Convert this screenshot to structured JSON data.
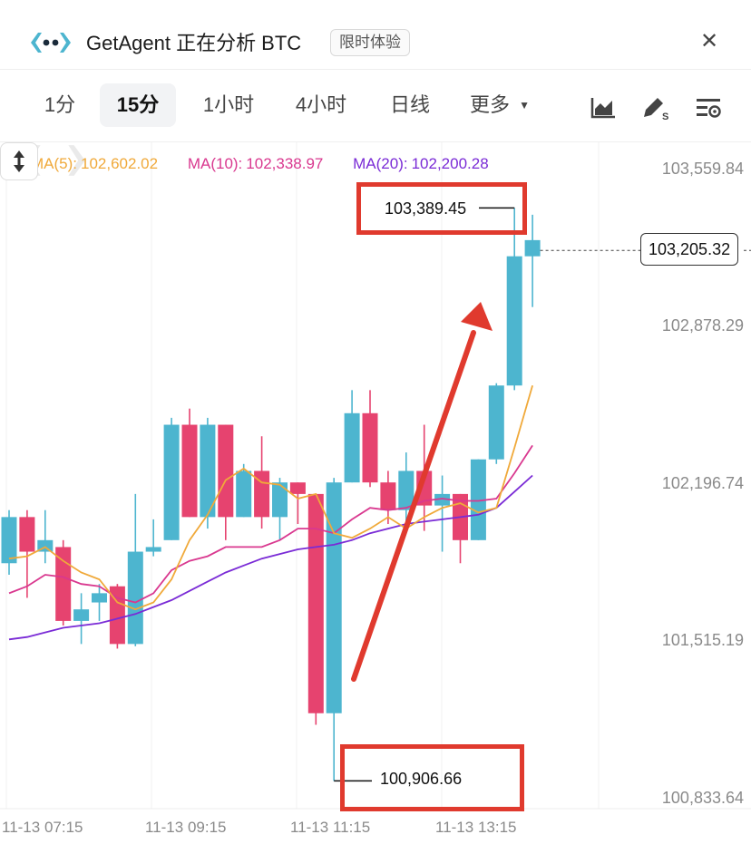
{
  "header": {
    "logo_icon": "getagent-logo-icon",
    "title": "GetAgent 正在分析 BTC",
    "badge": "限时体验",
    "close_icon": "close-icon"
  },
  "tabs": [
    {
      "label": "1分",
      "active": false
    },
    {
      "label": "15分",
      "active": true
    },
    {
      "label": "1小时",
      "active": false
    },
    {
      "label": "4小时",
      "active": false
    },
    {
      "label": "日线",
      "active": false
    },
    {
      "label": "更多",
      "active": false
    }
  ],
  "toolbar": {
    "icons": [
      "chart-type-icon",
      "draw-tool-icon",
      "indicator-settings-icon"
    ]
  },
  "colors": {
    "up": "#4db5cf",
    "down": "#e6436f",
    "ma5": "#f0a93a",
    "ma10": "#d9388f",
    "ma20": "#7a2bd6",
    "highlight": "#e03a2e"
  },
  "chart_data": {
    "type": "candlestick",
    "ma": {
      "ma5": {
        "label": "MA(5):",
        "value": "102,602.02"
      },
      "ma10": {
        "label": "MA(10):",
        "value": "102,338.97"
      },
      "ma20": {
        "label": "MA(20):",
        "value": "102,200.28"
      }
    },
    "y_ticks": [
      "103,559.84",
      "102,878.29",
      "102,196.74",
      "101,515.19",
      "100,833.64"
    ],
    "y_tick_values": [
      103559.84,
      102878.29,
      102196.74,
      101515.19,
      100833.64
    ],
    "ylim": [
      100833.64,
      103559.84
    ],
    "x_ticks": [
      "11-13 07:15",
      "11-13 09:15",
      "11-13 11:15",
      "11-13 13:15"
    ],
    "current_price": "103,205.32",
    "current_price_value": 103205.32,
    "high_label": "103,389.45",
    "high_value": 103389.45,
    "low_label": "100,906.66",
    "low_value": 100906.66,
    "candles": [
      {
        "o": 101850,
        "c": 102050,
        "h": 102080,
        "l": 101800
      },
      {
        "o": 102050,
        "c": 101900,
        "h": 102080,
        "l": 101700
      },
      {
        "o": 101900,
        "c": 101950,
        "h": 102080,
        "l": 101850
      },
      {
        "o": 101920,
        "c": 101600,
        "h": 101950,
        "l": 101580
      },
      {
        "o": 101600,
        "c": 101650,
        "h": 101720,
        "l": 101500
      },
      {
        "o": 101680,
        "c": 101720,
        "h": 101760,
        "l": 101600
      },
      {
        "o": 101750,
        "c": 101500,
        "h": 101760,
        "l": 101480
      },
      {
        "o": 101500,
        "c": 101900,
        "h": 102150,
        "l": 101490
      },
      {
        "o": 101900,
        "c": 101920,
        "h": 102040,
        "l": 101880
      },
      {
        "o": 101950,
        "c": 102450,
        "h": 102480,
        "l": 101950
      },
      {
        "o": 102450,
        "c": 102050,
        "h": 102520,
        "l": 102050
      },
      {
        "o": 102050,
        "c": 102450,
        "h": 102480,
        "l": 102000
      },
      {
        "o": 102450,
        "c": 102050,
        "h": 102450,
        "l": 101950
      },
      {
        "o": 102050,
        "c": 102250,
        "h": 102280,
        "l": 102050
      },
      {
        "o": 102250,
        "c": 102050,
        "h": 102400,
        "l": 102000
      },
      {
        "o": 102050,
        "c": 102200,
        "h": 102220,
        "l": 101950
      },
      {
        "o": 102200,
        "c": 102150,
        "h": 102200,
        "l": 102020
      },
      {
        "o": 102150,
        "c": 101200,
        "h": 102150,
        "l": 101150
      },
      {
        "o": 101200,
        "c": 102200,
        "h": 102220,
        "l": 100906.66
      },
      {
        "o": 102200,
        "c": 102500,
        "h": 102600,
        "l": 102200
      },
      {
        "o": 102500,
        "c": 102200,
        "h": 102600,
        "l": 102180
      },
      {
        "o": 102200,
        "c": 102080,
        "h": 102250,
        "l": 102020
      },
      {
        "o": 102080,
        "c": 102250,
        "h": 102330,
        "l": 102000
      },
      {
        "o": 102250,
        "c": 102100,
        "h": 102450,
        "l": 101990
      },
      {
        "o": 102100,
        "c": 102150,
        "h": 102230,
        "l": 101900
      },
      {
        "o": 102150,
        "c": 101950,
        "h": 102150,
        "l": 101850
      },
      {
        "o": 101950,
        "c": 102300,
        "h": 102300,
        "l": 101950
      },
      {
        "o": 102300,
        "c": 102620,
        "h": 102630,
        "l": 102280
      },
      {
        "o": 102620,
        "c": 103180,
        "h": 103389.45,
        "l": 102600
      },
      {
        "o": 103180,
        "c": 103250,
        "h": 103360,
        "l": 102960
      }
    ],
    "ma5_series": [
      101870,
      101880,
      101920,
      101860,
      101810,
      101780,
      101680,
      101650,
      101680,
      101780,
      101950,
      102060,
      102210,
      102260,
      102200,
      102190,
      102130,
      102150,
      101980,
      101960,
      102000,
      102050,
      102000,
      102050,
      102090,
      102110,
      102070,
      102090,
      102350,
      102620
    ],
    "ma10_series": [
      101720,
      101750,
      101800,
      101790,
      101760,
      101750,
      101700,
      101680,
      101720,
      101820,
      101860,
      101880,
      101920,
      101920,
      101920,
      101950,
      102000,
      102000,
      101980,
      102040,
      102090,
      102080,
      102090,
      102120,
      102130,
      102120,
      102120,
      102130,
      102240,
      102360
    ],
    "ma20_series": [
      101520,
      101530,
      101550,
      101570,
      101580,
      101590,
      101610,
      101630,
      101660,
      101690,
      101730,
      101770,
      101810,
      101840,
      101870,
      101890,
      101910,
      101920,
      101930,
      101950,
      101980,
      102000,
      102020,
      102030,
      102040,
      102050,
      102060,
      102090,
      102160,
      102230
    ]
  }
}
